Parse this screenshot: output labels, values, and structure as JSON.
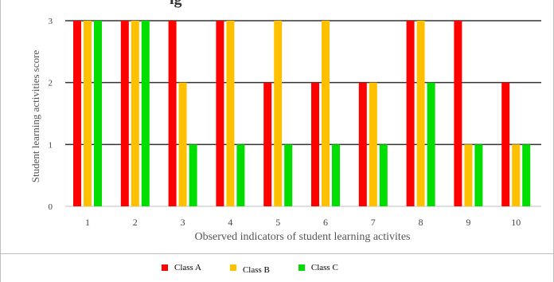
{
  "header_partial": "ig",
  "chart_data": {
    "type": "bar",
    "categories": [
      "1",
      "2",
      "3",
      "4",
      "5",
      "6",
      "7",
      "8",
      "9",
      "10"
    ],
    "series": [
      {
        "name": "Class A",
        "color": "#ff0000",
        "values": [
          3,
          3,
          3,
          3,
          2,
          2,
          2,
          3,
          3,
          2
        ]
      },
      {
        "name": "Class B",
        "color": "#ffc000",
        "values": [
          3,
          3,
          2,
          3,
          3,
          3,
          2,
          3,
          1,
          1
        ]
      },
      {
        "name": "Class C",
        "color": "#00dd00",
        "values": [
          3,
          3,
          1,
          1,
          1,
          1,
          1,
          2,
          1,
          1
        ]
      }
    ],
    "xlabel": "Observed indicators of student learning activites",
    "ylabel": "Student learning activities score",
    "ylim": [
      0,
      3
    ],
    "yticks": [
      "0",
      "1",
      "2",
      "3"
    ],
    "grid": true,
    "legend": "bottom"
  }
}
